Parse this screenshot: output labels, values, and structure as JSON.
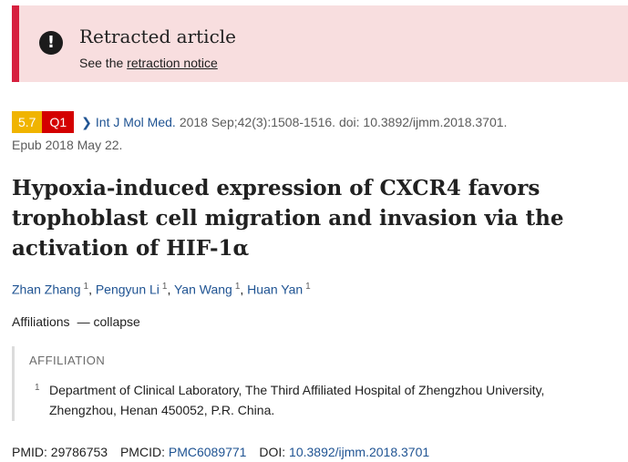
{
  "banner": {
    "icon": "exclamation-icon",
    "title": "Retracted article",
    "sub_prefix": "See the",
    "link": "retraction notice",
    "accent_color": "#d6203f",
    "bg_color": "#f8dedf"
  },
  "citation": {
    "impact_factor": "5.7",
    "quartile": "Q1",
    "journal": "Int J Mol Med.",
    "details": "2018 Sep;42(3):1508-1516. doi: 10.3892/ijmm.2018.3701.",
    "epub": "Epub 2018 May 22."
  },
  "article": {
    "title": "Hypoxia-induced expression of CXCR4 favors trophoblast cell migration and invasion via the activation of HIF-1α"
  },
  "authors": [
    {
      "name": "Zhan Zhang",
      "aff": "1"
    },
    {
      "name": "Pengyun Li",
      "aff": "1"
    },
    {
      "name": "Yan Wang",
      "aff": "1"
    },
    {
      "name": "Huan Yan",
      "aff": "1"
    }
  ],
  "affiliations": {
    "label": "Affiliations",
    "toggle": "— collapse",
    "heading": "AFFILIATION",
    "items": [
      {
        "num": "1",
        "text": "Department of Clinical Laboratory, The Third Affiliated Hospital of Zhengzhou University, Zhengzhou, Henan 450052, P.R. China."
      }
    ]
  },
  "identifiers": {
    "pmid_label": "PMID:",
    "pmid": "29786753",
    "pmcid_label": "PMCID:",
    "pmcid": "PMC6089771",
    "doi_label": "DOI:",
    "doi": "10.3892/ijmm.2018.3701"
  }
}
